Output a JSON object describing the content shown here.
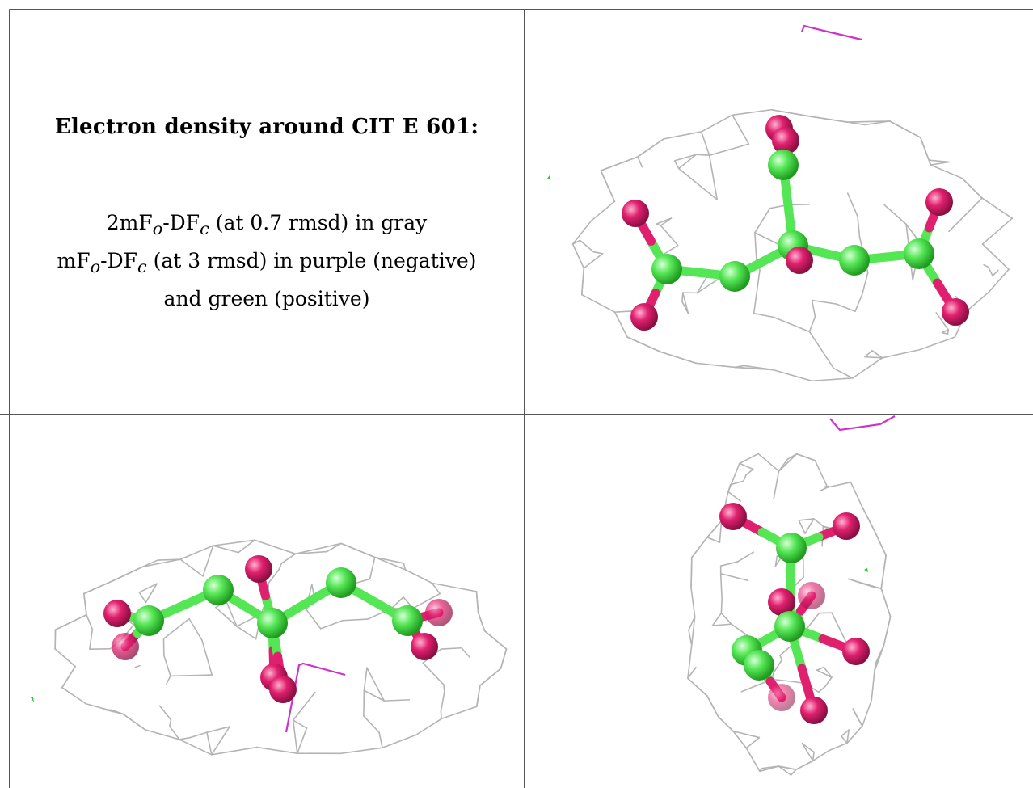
{
  "caption": {
    "title": "Electron density around CIT E 601:",
    "lines": [
      {
        "pre": "2mF",
        "sub1": "o",
        "mid": "-DF",
        "sub2": "c",
        "post": " (at 0.7 rmsd) in gray"
      },
      {
        "pre": "mF",
        "sub1": "o",
        "mid": "-DF",
        "sub2": "c",
        "post": " (at 3 rmsd) in purple (negative)"
      },
      {
        "pre": "and green (positive)",
        "sub1": "",
        "mid": "",
        "sub2": "",
        "post": ""
      }
    ]
  },
  "colors": {
    "mesh_gray": "#b4b4b4",
    "negative_purple": "#cc33cc",
    "positive_green": "#22cc22",
    "carbon": "#55e655",
    "oxygen": "#e0206e",
    "border": "#555555"
  },
  "views": [
    "top-right",
    "bottom-left",
    "bottom-right"
  ]
}
